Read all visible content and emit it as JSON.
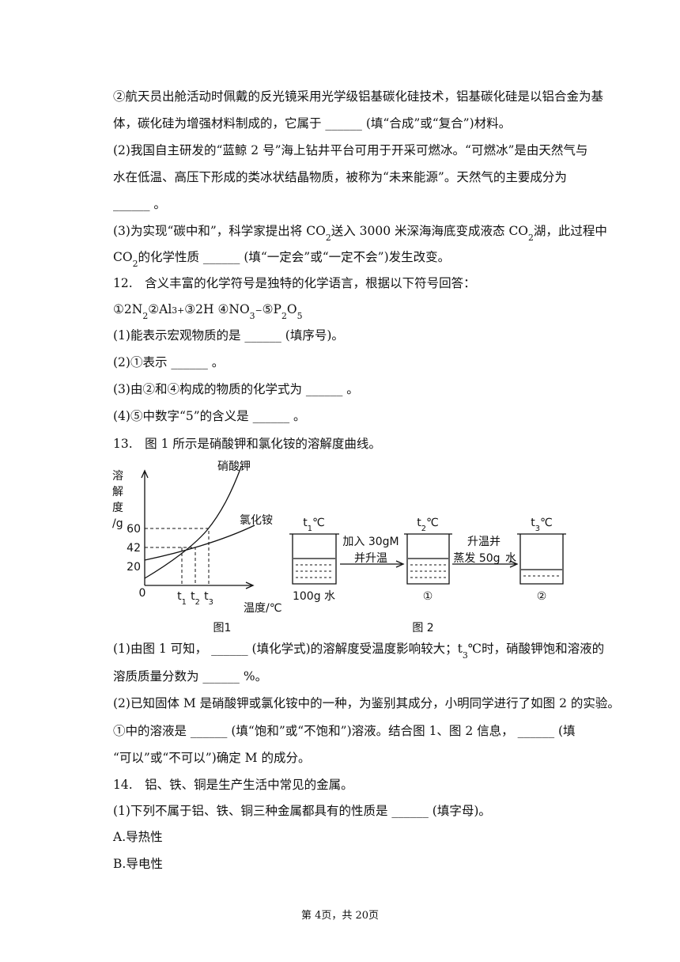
{
  "lines": [
    [
      "②航天员出舱活动时佩戴的反光镜采用光学级铝基碳化硅技术，铝基碳化硅是以铝合金为基"
    ],
    [
      "体，碳化硅为增强材料制成的，它属于 ______ (填“合成”或“复合”)材料。"
    ],
    [
      "(2)我国自主研发的“蓝鲸 2 号”海上钻井平台可用于开采可燃冰。“可燃冰”是由天然气与"
    ],
    [
      "水在低温、高压下形成的类冰状结晶物质，被称为“未来能源”。天然气的主要成分为"
    ],
    [
      "______ 。"
    ],
    [
      "(3)为实现“碳中和”，科学家提出将 CO",
      {
        "sub": "2"
      },
      "送入 3000 米深海海底变成液态 CO",
      {
        "sub": "2"
      },
      "湖，此过程中"
    ],
    [
      "CO",
      {
        "sub": "2"
      },
      "的化学性质 ______ (填“一定会”或“一定不会”)发生改变。"
    ],
    [
      "12.　含义丰富的化学符号是独特的化学语言，根据以下符号回答："
    ],
    [
      "①2N",
      {
        "sub": "2"
      },
      "②Al",
      {
        "sup": "3+"
      },
      "③2H ④NO",
      {
        "sub": "3"
      },
      {
        "sup": "−"
      },
      "⑤P",
      {
        "sub": "2"
      },
      "O",
      {
        "sub": "5"
      }
    ],
    [
      "(1)能表示宏观物质的是 ______ (填序号)。"
    ],
    [
      "(2)①表示 ______ 。"
    ],
    [
      "(3)由②和④构成的物质的化学式为 ______ 。"
    ],
    [
      "(4)⑤中数字“5”的含义是 ______ 。"
    ],
    [
      "13.　图 1 所示是硝酸钾和氯化铵的溶解度曲线。"
    ],
    [
      "(1)由图 1 可知， ______ (填化学式)的溶解度受温度影响较大；t",
      {
        "sub": "3"
      },
      "℃时，硝酸钾饱和溶液的"
    ],
    [
      "溶质质量分数为 ______ %。"
    ],
    [
      "(2)已知固体 M 是硝酸钾或氯化铵中的一种，为鉴别其成分，小明同学进行了如图 2 的实验。"
    ],
    [
      "①中的溶液是 ______ (填“饱和”或“不饱和”)溶液。结合图 1、图 2 信息， ______ (填"
    ],
    [
      "“可以”或“不可以”)确定 M 的成分。"
    ],
    [
      "14.　铝、铁、铜是生产生活中常见的金属。"
    ],
    [
      "(1)下列不属于铝、铁、铜三种金属都具有的性质是 ______ (填字母)。"
    ],
    [
      "A.导热性"
    ],
    [
      "B.导电性"
    ]
  ],
  "figure1": {
    "y_label": [
      "溶",
      "解",
      "度",
      "/g"
    ],
    "yticks": [
      60,
      42,
      20
    ],
    "origin": "0",
    "xticks": [
      [
        "t",
        {
          "sub": "1"
        }
      ],
      [
        "t",
        {
          "sub": "2"
        }
      ],
      [
        "t",
        {
          "sub": "3"
        }
      ]
    ],
    "x_label": "温度/℃",
    "curve_labels": [
      "硝酸钾",
      "氯化铵"
    ],
    "caption": "图1"
  },
  "figure2": {
    "temps": [
      [
        "t",
        {
          "sub": "1"
        },
        "℃"
      ],
      [
        "t",
        {
          "sub": "2"
        },
        "℃"
      ],
      [
        "t",
        {
          "sub": "3"
        },
        "℃"
      ]
    ],
    "step1": [
      "加入 30gM",
      "并升温"
    ],
    "step2": [
      "升温并",
      "蒸发 50g",
      "水"
    ],
    "beaker_labels": [
      "100g 水",
      "①",
      "②"
    ],
    "caption": "图 2"
  },
  "footer": "第 4页，共 20页"
}
